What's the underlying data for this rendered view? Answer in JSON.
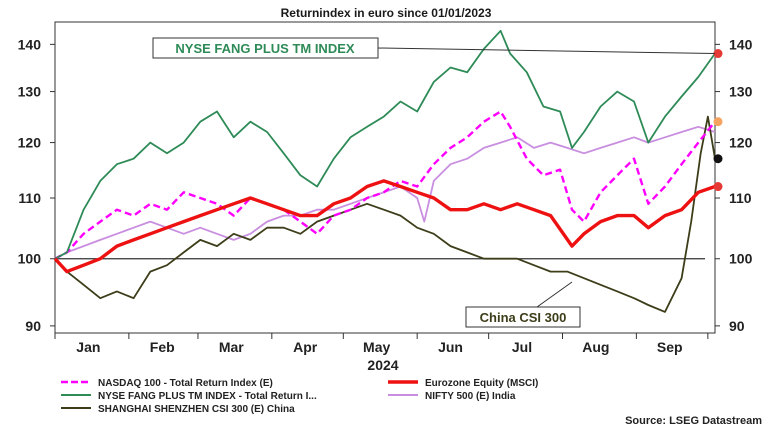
{
  "chart_data": {
    "type": "line",
    "title": "Returnindex in euro  since 01/01/2023",
    "xlabel": "2024",
    "ylabel": "",
    "y_scale": "log",
    "ylim": [
      89,
      145
    ],
    "yticks": [
      90,
      100,
      110,
      120,
      130,
      140
    ],
    "grid": false,
    "legend_position": "bottom",
    "source": "Source: LSEG Datastream",
    "x_months": [
      {
        "label": "Jan",
        "date": "2024-01-15"
      },
      {
        "label": "Feb",
        "date": "2024-02-15"
      },
      {
        "label": "Mar",
        "date": "2024-03-15"
      },
      {
        "label": "Apr",
        "date": "2024-04-15"
      },
      {
        "label": "May",
        "date": "2024-05-15"
      },
      {
        "label": "Jun",
        "date": "2024-06-15"
      },
      {
        "label": "Jul",
        "date": "2024-07-15"
      },
      {
        "label": "Aug",
        "date": "2024-08-15"
      },
      {
        "label": "Sep",
        "date": "2024-09-15"
      }
    ],
    "xlim": [
      "2024-01-01",
      "2024-10-04"
    ],
    "reference_line": 100,
    "annotations": [
      {
        "text": "NYSE FANG PLUS TM INDEX",
        "color": "#2e8b57",
        "series": "NYSE FANG PLUS TM INDEX - Total Return I..."
      },
      {
        "text": "China CSI 300",
        "color": "#3d3d1a",
        "series": "SHANGHAI SHENZHEN CSI 300 (E) China"
      }
    ],
    "series": [
      {
        "name": "NASDAQ 100 - Total Return Index (E)",
        "color": "#ff00ff",
        "style": "dashed",
        "end_marker": "#f4a460",
        "points": [
          [
            "2024-01-01",
            100
          ],
          [
            "2024-01-06",
            101
          ],
          [
            "2024-01-13",
            104
          ],
          [
            "2024-01-20",
            106
          ],
          [
            "2024-01-27",
            108
          ],
          [
            "2024-02-03",
            107
          ],
          [
            "2024-02-10",
            109
          ],
          [
            "2024-02-17",
            108
          ],
          [
            "2024-02-24",
            111
          ],
          [
            "2024-03-02",
            110
          ],
          [
            "2024-03-09",
            109
          ],
          [
            "2024-03-16",
            107
          ],
          [
            "2024-03-23",
            110
          ],
          [
            "2024-03-30",
            109
          ],
          [
            "2024-04-06",
            108
          ],
          [
            "2024-04-13",
            106
          ],
          [
            "2024-04-20",
            104
          ],
          [
            "2024-04-27",
            107
          ],
          [
            "2024-05-04",
            108
          ],
          [
            "2024-05-11",
            110
          ],
          [
            "2024-05-18",
            111
          ],
          [
            "2024-05-25",
            113
          ],
          [
            "2024-06-01",
            112
          ],
          [
            "2024-06-08",
            116
          ],
          [
            "2024-06-15",
            119
          ],
          [
            "2024-06-22",
            121
          ],
          [
            "2024-06-29",
            124
          ],
          [
            "2024-07-06",
            126
          ],
          [
            "2024-07-10",
            123
          ],
          [
            "2024-07-17",
            117
          ],
          [
            "2024-07-24",
            114
          ],
          [
            "2024-07-31",
            115
          ],
          [
            "2024-08-05",
            108
          ],
          [
            "2024-08-10",
            106
          ],
          [
            "2024-08-17",
            111
          ],
          [
            "2024-08-24",
            114
          ],
          [
            "2024-08-31",
            117
          ],
          [
            "2024-09-06",
            109
          ],
          [
            "2024-09-13",
            112
          ],
          [
            "2024-09-20",
            116
          ],
          [
            "2024-09-27",
            120
          ],
          [
            "2024-10-04",
            124
          ]
        ]
      },
      {
        "name": "NYSE FANG PLUS TM INDEX - Total Return I...",
        "color": "#2e8b57",
        "style": "solid",
        "end_marker": "#e53935",
        "points": [
          [
            "2024-01-01",
            100
          ],
          [
            "2024-01-06",
            101
          ],
          [
            "2024-01-13",
            108
          ],
          [
            "2024-01-20",
            113
          ],
          [
            "2024-01-27",
            116
          ],
          [
            "2024-02-03",
            117
          ],
          [
            "2024-02-10",
            120
          ],
          [
            "2024-02-17",
            118
          ],
          [
            "2024-02-24",
            120
          ],
          [
            "2024-03-02",
            124
          ],
          [
            "2024-03-09",
            126
          ],
          [
            "2024-03-16",
            121
          ],
          [
            "2024-03-23",
            124
          ],
          [
            "2024-03-30",
            122
          ],
          [
            "2024-04-06",
            118
          ],
          [
            "2024-04-13",
            114
          ],
          [
            "2024-04-20",
            112
          ],
          [
            "2024-04-27",
            117
          ],
          [
            "2024-05-04",
            121
          ],
          [
            "2024-05-11",
            123
          ],
          [
            "2024-05-18",
            125
          ],
          [
            "2024-05-25",
            128
          ],
          [
            "2024-06-01",
            126
          ],
          [
            "2024-06-08",
            132
          ],
          [
            "2024-06-15",
            135
          ],
          [
            "2024-06-22",
            134
          ],
          [
            "2024-06-29",
            139
          ],
          [
            "2024-07-06",
            143
          ],
          [
            "2024-07-10",
            138
          ],
          [
            "2024-07-17",
            134
          ],
          [
            "2024-07-24",
            127
          ],
          [
            "2024-07-31",
            126
          ],
          [
            "2024-08-05",
            119
          ],
          [
            "2024-08-10",
            122
          ],
          [
            "2024-08-17",
            127
          ],
          [
            "2024-08-24",
            130
          ],
          [
            "2024-08-31",
            128
          ],
          [
            "2024-09-06",
            120
          ],
          [
            "2024-09-13",
            125
          ],
          [
            "2024-09-20",
            129
          ],
          [
            "2024-09-27",
            133
          ],
          [
            "2024-10-04",
            138
          ]
        ]
      },
      {
        "name": "SHANGHAI SHENZHEN CSI 300 (E) China",
        "color": "#3d3d1a",
        "style": "solid",
        "end_marker": "#111111",
        "points": [
          [
            "2024-01-01",
            100
          ],
          [
            "2024-01-06",
            98
          ],
          [
            "2024-01-13",
            96
          ],
          [
            "2024-01-20",
            94
          ],
          [
            "2024-01-27",
            95
          ],
          [
            "2024-02-03",
            94
          ],
          [
            "2024-02-10",
            98
          ],
          [
            "2024-02-17",
            99
          ],
          [
            "2024-02-24",
            101
          ],
          [
            "2024-03-02",
            103
          ],
          [
            "2024-03-09",
            102
          ],
          [
            "2024-03-16",
            104
          ],
          [
            "2024-03-23",
            103
          ],
          [
            "2024-03-30",
            105
          ],
          [
            "2024-04-06",
            105
          ],
          [
            "2024-04-13",
            104
          ],
          [
            "2024-04-20",
            106
          ],
          [
            "2024-04-27",
            107
          ],
          [
            "2024-05-04",
            108
          ],
          [
            "2024-05-11",
            109
          ],
          [
            "2024-05-18",
            108
          ],
          [
            "2024-05-25",
            107
          ],
          [
            "2024-06-01",
            105
          ],
          [
            "2024-06-08",
            104
          ],
          [
            "2024-06-15",
            102
          ],
          [
            "2024-06-22",
            101
          ],
          [
            "2024-06-29",
            100
          ],
          [
            "2024-07-06",
            100
          ],
          [
            "2024-07-13",
            100
          ],
          [
            "2024-07-20",
            99
          ],
          [
            "2024-07-27",
            98
          ],
          [
            "2024-08-03",
            98
          ],
          [
            "2024-08-10",
            97
          ],
          [
            "2024-08-17",
            96
          ],
          [
            "2024-08-24",
            95
          ],
          [
            "2024-08-31",
            94
          ],
          [
            "2024-09-06",
            93
          ],
          [
            "2024-09-13",
            92
          ],
          [
            "2024-09-20",
            97
          ],
          [
            "2024-09-24",
            106
          ],
          [
            "2024-09-28",
            118
          ],
          [
            "2024-10-01",
            125
          ],
          [
            "2024-10-04",
            117
          ]
        ]
      },
      {
        "name": "Eurozone Equity (MSCI)",
        "color": "#ee1111",
        "style": "thick",
        "end_marker": "#e53935",
        "points": [
          [
            "2024-01-01",
            100
          ],
          [
            "2024-01-06",
            98
          ],
          [
            "2024-01-13",
            99
          ],
          [
            "2024-01-20",
            100
          ],
          [
            "2024-01-27",
            102
          ],
          [
            "2024-02-03",
            103
          ],
          [
            "2024-02-10",
            104
          ],
          [
            "2024-02-17",
            105
          ],
          [
            "2024-02-24",
            106
          ],
          [
            "2024-03-02",
            107
          ],
          [
            "2024-03-09",
            108
          ],
          [
            "2024-03-16",
            109
          ],
          [
            "2024-03-23",
            110
          ],
          [
            "2024-03-30",
            109
          ],
          [
            "2024-04-06",
            108
          ],
          [
            "2024-04-13",
            107
          ],
          [
            "2024-04-20",
            107
          ],
          [
            "2024-04-27",
            109
          ],
          [
            "2024-05-04",
            110
          ],
          [
            "2024-05-11",
            112
          ],
          [
            "2024-05-18",
            113
          ],
          [
            "2024-05-25",
            112
          ],
          [
            "2024-06-01",
            111
          ],
          [
            "2024-06-08",
            110
          ],
          [
            "2024-06-15",
            108
          ],
          [
            "2024-06-22",
            108
          ],
          [
            "2024-06-29",
            109
          ],
          [
            "2024-07-06",
            108
          ],
          [
            "2024-07-13",
            109
          ],
          [
            "2024-07-20",
            108
          ],
          [
            "2024-07-27",
            107
          ],
          [
            "2024-08-05",
            102
          ],
          [
            "2024-08-10",
            104
          ],
          [
            "2024-08-17",
            106
          ],
          [
            "2024-08-24",
            107
          ],
          [
            "2024-08-31",
            107
          ],
          [
            "2024-09-06",
            105
          ],
          [
            "2024-09-13",
            107
          ],
          [
            "2024-09-20",
            108
          ],
          [
            "2024-09-27",
            111
          ],
          [
            "2024-10-04",
            112
          ]
        ]
      },
      {
        "name": "NIFTY 500 (E)  India",
        "color": "#c98ee0",
        "style": "solid",
        "end_marker": null,
        "points": [
          [
            "2024-01-01",
            100
          ],
          [
            "2024-01-06",
            101
          ],
          [
            "2024-01-13",
            102
          ],
          [
            "2024-01-20",
            103
          ],
          [
            "2024-01-27",
            104
          ],
          [
            "2024-02-03",
            105
          ],
          [
            "2024-02-10",
            106
          ],
          [
            "2024-02-17",
            105
          ],
          [
            "2024-02-24",
            104
          ],
          [
            "2024-03-02",
            105
          ],
          [
            "2024-03-09",
            104
          ],
          [
            "2024-03-16",
            103
          ],
          [
            "2024-03-23",
            104
          ],
          [
            "2024-03-30",
            106
          ],
          [
            "2024-04-06",
            107
          ],
          [
            "2024-04-13",
            107
          ],
          [
            "2024-04-20",
            108
          ],
          [
            "2024-04-27",
            108
          ],
          [
            "2024-05-04",
            109
          ],
          [
            "2024-05-11",
            110
          ],
          [
            "2024-05-18",
            111
          ],
          [
            "2024-05-25",
            112
          ],
          [
            "2024-06-01",
            110
          ],
          [
            "2024-06-04",
            106
          ],
          [
            "2024-06-08",
            113
          ],
          [
            "2024-06-15",
            116
          ],
          [
            "2024-06-22",
            117
          ],
          [
            "2024-06-29",
            119
          ],
          [
            "2024-07-06",
            120
          ],
          [
            "2024-07-13",
            121
          ],
          [
            "2024-07-20",
            119
          ],
          [
            "2024-07-27",
            120
          ],
          [
            "2024-08-03",
            119
          ],
          [
            "2024-08-10",
            118
          ],
          [
            "2024-08-17",
            119
          ],
          [
            "2024-08-24",
            120
          ],
          [
            "2024-08-31",
            121
          ],
          [
            "2024-09-06",
            120
          ],
          [
            "2024-09-13",
            121
          ],
          [
            "2024-09-20",
            122
          ],
          [
            "2024-09-27",
            123
          ],
          [
            "2024-10-04",
            122
          ]
        ]
      }
    ],
    "legend": [
      {
        "label": "NASDAQ 100 - Total Return Index (E)",
        "color": "#ff00ff",
        "style": "dashed"
      },
      {
        "label": "Eurozone Equity (MSCI)",
        "color": "#ee1111",
        "style": "thick"
      },
      {
        "label": "NYSE FANG PLUS TM INDEX - Total Return I...",
        "color": "#2e8b57",
        "style": "solid"
      },
      {
        "label": "NIFTY 500 (E)  India",
        "color": "#c98ee0",
        "style": "solid"
      },
      {
        "label": "SHANGHAI SHENZHEN CSI 300 (E) China",
        "color": "#3d3d1a",
        "style": "solid"
      }
    ]
  }
}
